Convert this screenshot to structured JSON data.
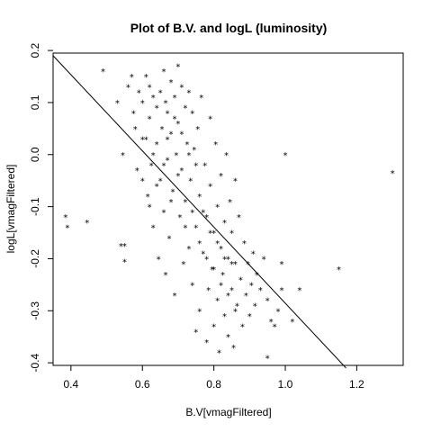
{
  "chart_data": {
    "type": "scatter",
    "title": "Plot of B.V. and logL (luminosity)",
    "xlabel": "B.V[vmagFiltered]",
    "ylabel": "logL[vmagFiltered]",
    "xlim": [
      0.35,
      1.33
    ],
    "ylim": [
      -0.405,
      0.195
    ],
    "x_ticks": [
      0.4,
      0.6,
      0.8,
      1.0,
      1.2
    ],
    "x_tick_labels": [
      "0.4",
      "0.6",
      "0.8",
      "1.0",
      "1.2"
    ],
    "y_ticks": [
      -0.4,
      -0.3,
      -0.2,
      -0.1,
      0.0,
      0.1,
      0.2
    ],
    "y_tick_labels": [
      "-0.4",
      "-0.3",
      "-0.2",
      "-0.1",
      "0.0",
      "0.1",
      "0.2"
    ],
    "marker": "*",
    "regression_line": {
      "x": [
        0.35,
        1.17
      ],
      "y": [
        0.19,
        -0.41
      ]
    },
    "points_visible": "dense cluster of 400+ stars between B.V 0.55-0.95; listed points are approximate",
    "points": [
      [
        0.385,
        -0.12
      ],
      [
        0.39,
        -0.14
      ],
      [
        0.445,
        -0.13
      ],
      [
        0.49,
        0.16
      ],
      [
        0.53,
        0.1
      ],
      [
        0.54,
        -0.175
      ],
      [
        0.55,
        -0.175
      ],
      [
        0.55,
        -0.205
      ],
      [
        0.545,
        0.0
      ],
      [
        0.56,
        0.13
      ],
      [
        0.57,
        0.15
      ],
      [
        0.575,
        0.08
      ],
      [
        0.58,
        0.05
      ],
      [
        0.585,
        -0.03
      ],
      [
        0.59,
        0.12
      ],
      [
        0.6,
        0.1
      ],
      [
        0.6,
        -0.05
      ],
      [
        0.61,
        0.15
      ],
      [
        0.61,
        0.03
      ],
      [
        0.615,
        -0.08
      ],
      [
        0.62,
        0.13
      ],
      [
        0.62,
        0.07
      ],
      [
        0.625,
        -0.02
      ],
      [
        0.63,
        0.11
      ],
      [
        0.63,
        -0.14
      ],
      [
        0.64,
        0.09
      ],
      [
        0.64,
        0.02
      ],
      [
        0.645,
        -0.2
      ],
      [
        0.65,
        0.12
      ],
      [
        0.65,
        -0.05
      ],
      [
        0.655,
        0.05
      ],
      [
        0.66,
        0.16
      ],
      [
        0.66,
        -0.11
      ],
      [
        0.665,
        0.1
      ],
      [
        0.665,
        -0.23
      ],
      [
        0.67,
        0.08
      ],
      [
        0.67,
        -0.01
      ],
      [
        0.675,
        -0.16
      ],
      [
        0.68,
        0.14
      ],
      [
        0.68,
        0.04
      ],
      [
        0.685,
        -0.07
      ],
      [
        0.69,
        0.11
      ],
      [
        0.69,
        -0.27
      ],
      [
        0.695,
        0.0
      ],
      [
        0.7,
        0.17
      ],
      [
        0.7,
        0.06
      ],
      [
        0.705,
        -0.12
      ],
      [
        0.71,
        0.13
      ],
      [
        0.71,
        -0.03
      ],
      [
        0.715,
        -0.21
      ],
      [
        0.72,
        0.09
      ],
      [
        0.72,
        -0.09
      ],
      [
        0.725,
        0.02
      ],
      [
        0.73,
        0.12
      ],
      [
        0.73,
        -0.18
      ],
      [
        0.735,
        -0.05
      ],
      [
        0.74,
        0.08
      ],
      [
        0.74,
        -0.25
      ],
      [
        0.745,
        0.01
      ],
      [
        0.75,
        -0.14
      ],
      [
        0.75,
        -0.34
      ],
      [
        0.755,
        0.05
      ],
      [
        0.76,
        -0.08
      ],
      [
        0.76,
        -0.3
      ],
      [
        0.765,
        0.11
      ],
      [
        0.77,
        -0.19
      ],
      [
        0.775,
        -0.02
      ],
      [
        0.78,
        -0.12
      ],
      [
        0.78,
        -0.36
      ],
      [
        0.785,
        -0.26
      ],
      [
        0.79,
        0.07
      ],
      [
        0.79,
        -0.06
      ],
      [
        0.795,
        -0.22
      ],
      [
        0.8,
        -0.15
      ],
      [
        0.8,
        -0.33
      ],
      [
        0.805,
        0.02
      ],
      [
        0.81,
        -0.1
      ],
      [
        0.81,
        -0.28
      ],
      [
        0.815,
        -0.38
      ],
      [
        0.82,
        -0.18
      ],
      [
        0.82,
        -0.04
      ],
      [
        0.825,
        -0.23
      ],
      [
        0.83,
        -0.13
      ],
      [
        0.83,
        -0.31
      ],
      [
        0.835,
        0.0
      ],
      [
        0.84,
        -0.2
      ],
      [
        0.84,
        -0.35
      ],
      [
        0.845,
        -0.09
      ],
      [
        0.85,
        -0.26
      ],
      [
        0.85,
        -0.15
      ],
      [
        0.855,
        -0.37
      ],
      [
        0.86,
        -0.21
      ],
      [
        0.86,
        -0.05
      ],
      [
        0.865,
        -0.29
      ],
      [
        0.87,
        -0.12
      ],
      [
        0.875,
        -0.24
      ],
      [
        0.88,
        -0.33
      ],
      [
        0.885,
        -0.17
      ],
      [
        0.89,
        -0.27
      ],
      [
        0.895,
        -0.21
      ],
      [
        0.9,
        -0.31
      ],
      [
        0.905,
        -0.25
      ],
      [
        0.91,
        -0.19
      ],
      [
        0.915,
        -0.29
      ],
      [
        0.92,
        -0.23
      ],
      [
        0.93,
        -0.26
      ],
      [
        0.94,
        -0.2
      ],
      [
        0.95,
        -0.28
      ],
      [
        0.95,
        -0.39
      ],
      [
        0.96,
        -0.32
      ],
      [
        0.97,
        -0.33
      ],
      [
        0.98,
        -0.3
      ],
      [
        0.99,
        -0.21
      ],
      [
        0.99,
        -0.26
      ],
      [
        1.0,
        0.0
      ],
      [
        1.02,
        -0.32
      ],
      [
        1.04,
        -0.26
      ],
      [
        1.15,
        -0.22
      ],
      [
        1.3,
        -0.035
      ],
      [
        0.6,
        0.03
      ],
      [
        0.62,
        -0.1
      ],
      [
        0.63,
        0.0
      ],
      [
        0.64,
        -0.06
      ],
      [
        0.66,
        -0.02
      ],
      [
        0.67,
        0.03
      ],
      [
        0.68,
        -0.09
      ],
      [
        0.69,
        0.07
      ],
      [
        0.7,
        -0.04
      ],
      [
        0.71,
        0.04
      ],
      [
        0.72,
        -0.14
      ],
      [
        0.73,
        0.0
      ],
      [
        0.74,
        -0.11
      ],
      [
        0.75,
        -0.02
      ],
      [
        0.76,
        -0.17
      ],
      [
        0.77,
        -0.11
      ],
      [
        0.78,
        -0.2
      ],
      [
        0.79,
        -0.15
      ],
      [
        0.8,
        -0.22
      ],
      [
        0.81,
        -0.17
      ],
      [
        0.82,
        -0.25
      ],
      [
        0.83,
        -0.2
      ],
      [
        0.84,
        -0.27
      ],
      [
        0.85,
        -0.21
      ],
      [
        0.86,
        -0.3
      ]
    ]
  }
}
